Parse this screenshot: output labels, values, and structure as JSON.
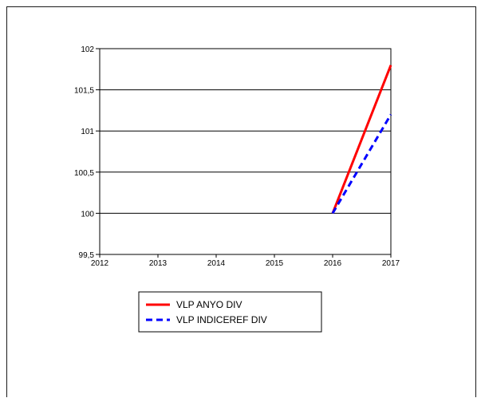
{
  "chart_data": {
    "type": "line",
    "title": "",
    "xlabel": "",
    "ylabel": "",
    "x": [
      2012,
      2013,
      2014,
      2015,
      2016,
      2017
    ],
    "xlim": [
      2012,
      2017
    ],
    "ylim": [
      99.5,
      102
    ],
    "xticks": [
      "2012",
      "2013",
      "2014",
      "2015",
      "2016",
      "2017"
    ],
    "yticks": [
      "99,5",
      "100",
      "100,5",
      "101",
      "101,5",
      "102"
    ],
    "yticks_values": [
      99.5,
      100,
      100.5,
      101,
      101.5,
      102
    ],
    "grid": "horizontal",
    "legend_position": "bottom-left",
    "series": [
      {
        "name": "VLP ANYO DIV",
        "color": "#ff0000",
        "style": "solid",
        "x": [
          2016,
          2017
        ],
        "values": [
          100,
          101.8
        ]
      },
      {
        "name": "VLP INDICEREF DIV",
        "color": "#0000ff",
        "style": "dashed",
        "x": [
          2016,
          2017
        ],
        "values": [
          100,
          101.2
        ]
      }
    ]
  }
}
